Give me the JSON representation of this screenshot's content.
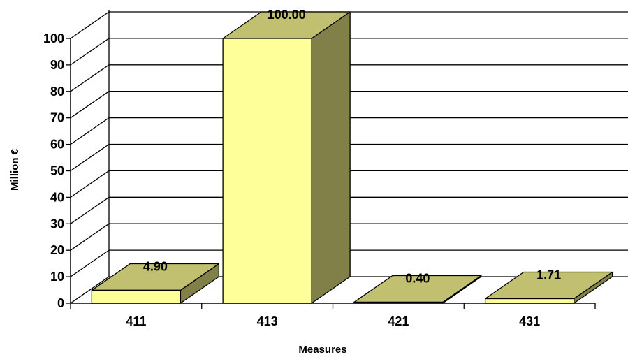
{
  "chart_data": {
    "type": "bar",
    "style": "3d",
    "categories": [
      "411",
      "413",
      "421",
      "431"
    ],
    "values": [
      4.9,
      100.0,
      0.4,
      1.71
    ],
    "data_labels": [
      "4.90",
      "100.00",
      "0.40",
      "1.71"
    ],
    "title": "",
    "xlabel": "Measures",
    "ylabel": "Million €",
    "ylim": [
      0,
      100
    ],
    "yticks": [
      0,
      10,
      20,
      30,
      40,
      50,
      60,
      70,
      80,
      90,
      100
    ],
    "grid": true,
    "legend": "none"
  },
  "colors": {
    "bar_front": "#ffff99",
    "bar_top": "#c0c070",
    "bar_side": "#808048",
    "gridline": "#000000",
    "background": "#ffffff"
  }
}
